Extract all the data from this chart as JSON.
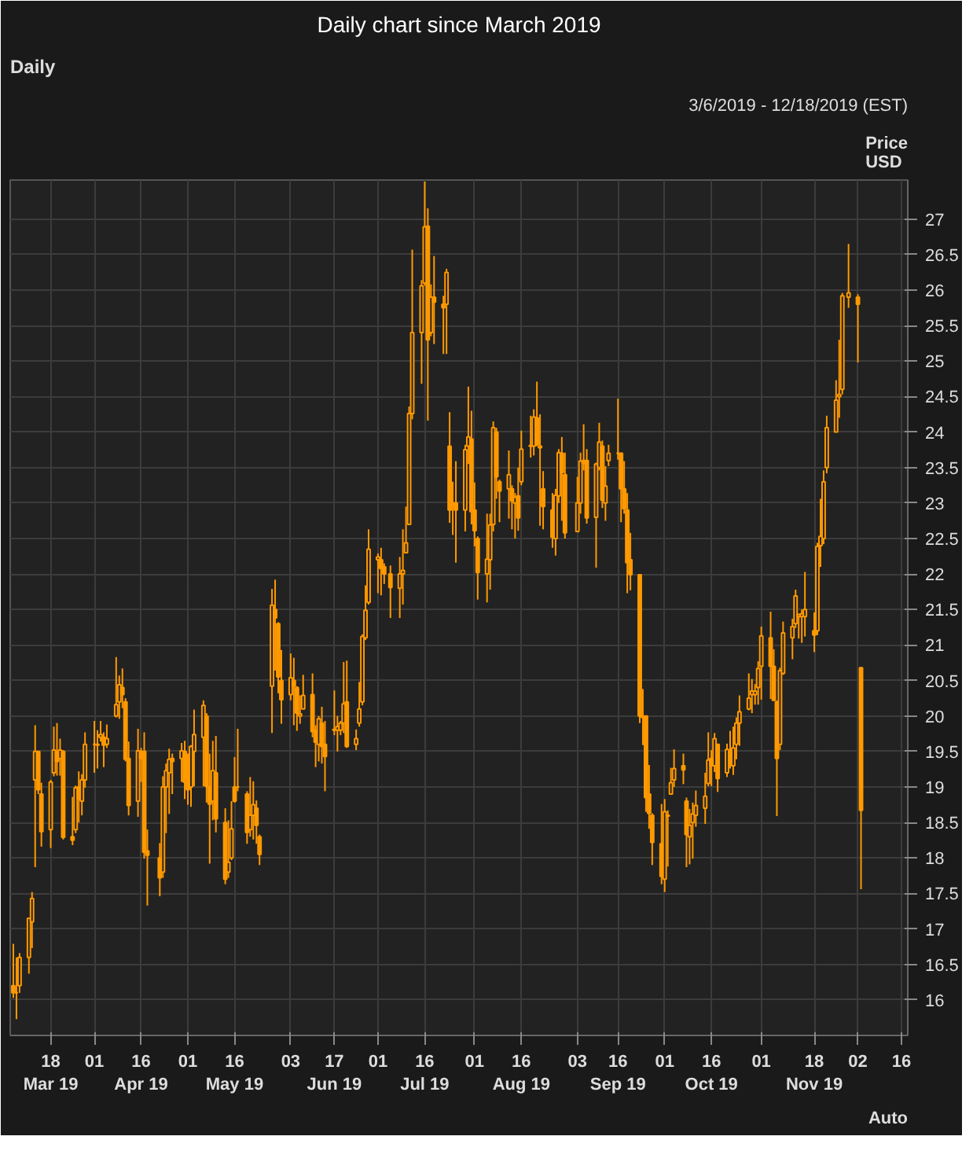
{
  "chart_data": {
    "type": "candlestick",
    "title": "Daily chart since March 2019",
    "subtitle": "3/6/2019 - 12/18/2019 (EST)",
    "ylabel": "Price\nUSD",
    "annotations": [
      "Daily",
      "Auto"
    ],
    "color": "#ff9900",
    "grid": true,
    "xlim": [
      "2019-03-05",
      "2019-12-18"
    ],
    "xticks": [
      {
        "value": "2019-03-18",
        "label": "18\nMar 19"
      },
      {
        "value": "2019-04-01",
        "label": "01"
      },
      {
        "value": "2019-04-16",
        "label": "16\nApr 19"
      },
      {
        "value": "2019-05-01",
        "label": "01"
      },
      {
        "value": "2019-05-16",
        "label": "16\nMay 19"
      },
      {
        "value": "2019-06-03",
        "label": "03"
      },
      {
        "value": "2019-06-17",
        "label": "17\nJun 19"
      },
      {
        "value": "2019-07-01",
        "label": "01"
      },
      {
        "value": "2019-07-16",
        "label": "16\nJul 19"
      },
      {
        "value": "2019-08-01",
        "label": "01"
      },
      {
        "value": "2019-08-16",
        "label": "16\nAug 19"
      },
      {
        "value": "2019-09-03",
        "label": "03"
      },
      {
        "value": "2019-09-16",
        "label": "16\nSep 19"
      },
      {
        "value": "2019-10-01",
        "label": "01"
      },
      {
        "value": "2019-10-16",
        "label": "16\nOct 19"
      },
      {
        "value": "2019-11-01",
        "label": "01"
      },
      {
        "value": "2019-11-18",
        "label": "18\nNov 19"
      },
      {
        "value": "2019-12-02",
        "label": "02"
      },
      {
        "value": "2019-12-16",
        "label": "16"
      }
    ],
    "ylim": [
      15.5,
      27.55
    ],
    "yticks": [
      16,
      16.5,
      17,
      17.5,
      18,
      18.5,
      19,
      19.5,
      20,
      20.5,
      21,
      21.5,
      22,
      22.5,
      23,
      23.5,
      24,
      24.5,
      25,
      25.5,
      26,
      26.5,
      27
    ],
    "x": [
      "2019-03-06",
      "2019-03-07",
      "2019-03-08",
      "2019-03-11",
      "2019-03-12",
      "2019-03-13",
      "2019-03-14",
      "2019-03-15",
      "2019-03-18",
      "2019-03-19",
      "2019-03-20",
      "2019-03-21",
      "2019-03-22",
      "2019-03-25",
      "2019-03-26",
      "2019-03-27",
      "2019-03-28",
      "2019-03-29",
      "2019-04-01",
      "2019-04-02",
      "2019-04-03",
      "2019-04-04",
      "2019-04-05",
      "2019-04-08",
      "2019-04-09",
      "2019-04-10",
      "2019-04-11",
      "2019-04-12",
      "2019-04-15",
      "2019-04-16",
      "2019-04-17",
      "2019-04-18",
      "2019-04-22",
      "2019-04-23",
      "2019-04-24",
      "2019-04-25",
      "2019-04-26",
      "2019-04-29",
      "2019-04-30",
      "2019-05-01",
      "2019-05-02",
      "2019-05-03",
      "2019-05-06",
      "2019-05-07",
      "2019-05-08",
      "2019-05-09",
      "2019-05-10",
      "2019-05-13",
      "2019-05-14",
      "2019-05-15",
      "2019-05-16",
      "2019-05-17",
      "2019-05-20",
      "2019-05-21",
      "2019-05-22",
      "2019-05-23",
      "2019-05-24",
      "2019-05-28",
      "2019-05-29",
      "2019-05-30",
      "2019-05-31",
      "2019-06-03",
      "2019-06-04",
      "2019-06-05",
      "2019-06-06",
      "2019-06-07",
      "2019-06-10",
      "2019-06-11",
      "2019-06-12",
      "2019-06-13",
      "2019-06-14",
      "2019-06-17",
      "2019-06-18",
      "2019-06-19",
      "2019-06-20",
      "2019-06-21",
      "2019-06-24",
      "2019-06-25",
      "2019-06-26",
      "2019-06-27",
      "2019-06-28",
      "2019-07-01",
      "2019-07-02",
      "2019-07-03",
      "2019-07-05",
      "2019-07-08",
      "2019-07-09",
      "2019-07-10",
      "2019-07-11",
      "2019-07-12",
      "2019-07-15",
      "2019-07-16",
      "2019-07-17",
      "2019-07-18",
      "2019-07-19",
      "2019-07-22",
      "2019-07-23",
      "2019-07-24",
      "2019-07-25",
      "2019-07-26",
      "2019-07-29",
      "2019-07-30",
      "2019-07-31",
      "2019-08-01",
      "2019-08-02",
      "2019-08-05",
      "2019-08-06",
      "2019-08-07",
      "2019-08-08",
      "2019-08-09",
      "2019-08-12",
      "2019-08-13",
      "2019-08-14",
      "2019-08-15",
      "2019-08-16",
      "2019-08-19",
      "2019-08-20",
      "2019-08-21",
      "2019-08-22",
      "2019-08-23",
      "2019-08-26",
      "2019-08-27",
      "2019-08-28",
      "2019-08-29",
      "2019-08-30",
      "2019-09-03",
      "2019-09-04",
      "2019-09-05",
      "2019-09-06",
      "2019-09-09",
      "2019-09-10",
      "2019-09-11",
      "2019-09-12",
      "2019-09-13",
      "2019-09-16",
      "2019-09-17",
      "2019-09-18",
      "2019-09-19",
      "2019-09-20",
      "2019-09-23",
      "2019-09-24",
      "2019-09-25",
      "2019-09-26",
      "2019-09-27",
      "2019-09-30",
      "2019-10-01",
      "2019-10-02",
      "2019-10-03",
      "2019-10-04",
      "2019-10-07",
      "2019-10-08",
      "2019-10-09",
      "2019-10-10",
      "2019-10-11",
      "2019-10-14",
      "2019-10-15",
      "2019-10-16",
      "2019-10-17",
      "2019-10-18",
      "2019-10-21",
      "2019-10-22",
      "2019-10-23",
      "2019-10-24",
      "2019-10-25",
      "2019-10-28",
      "2019-10-29",
      "2019-10-30",
      "2019-10-31",
      "2019-11-01",
      "2019-11-04",
      "2019-11-05",
      "2019-11-06",
      "2019-11-07",
      "2019-11-08",
      "2019-11-11",
      "2019-11-12",
      "2019-11-13",
      "2019-11-14",
      "2019-11-15",
      "2019-11-18",
      "2019-11-19",
      "2019-11-20",
      "2019-11-21",
      "2019-11-22",
      "2019-11-25",
      "2019-11-26",
      "2019-11-27",
      "2019-11-29",
      "2019-12-02",
      "2019-12-03"
    ],
    "ohlc": [
      [
        16.2,
        16.79,
        16.03,
        16.1
      ],
      [
        16.1,
        16.6,
        15.73,
        16.1
      ],
      [
        16.2,
        16.66,
        16.1,
        16.6
      ],
      [
        16.6,
        17.15,
        16.37,
        17.15
      ],
      [
        17.1,
        17.52,
        16.73,
        17.43
      ],
      [
        19.1,
        19.87,
        17.87,
        19.5
      ],
      [
        19.5,
        19.5,
        18.9,
        18.96
      ],
      [
        18.9,
        19.06,
        18.16,
        18.37
      ],
      [
        18.4,
        19.1,
        18.14,
        19.07
      ],
      [
        19.2,
        19.85,
        19.15,
        19.52
      ],
      [
        19.5,
        19.9,
        19.16,
        19.36
      ],
      [
        19.4,
        19.68,
        19.16,
        19.52
      ],
      [
        19.5,
        19.52,
        18.26,
        18.29
      ],
      [
        18.3,
        18.86,
        18.18,
        18.25
      ],
      [
        18.4,
        19.02,
        18.35,
        18.99
      ],
      [
        19.0,
        19.22,
        18.5,
        18.83
      ],
      [
        18.8,
        19.18,
        18.6,
        19.1
      ],
      [
        19.1,
        19.77,
        18.99,
        19.6
      ],
      [
        19.6,
        19.93,
        19.2,
        19.6
      ],
      [
        19.6,
        19.8,
        19.26,
        19.59
      ],
      [
        19.7,
        19.93,
        19.64,
        19.74
      ],
      [
        19.7,
        19.77,
        19.28,
        19.59
      ],
      [
        19.6,
        19.88,
        19.55,
        19.68
      ],
      [
        20.0,
        20.83,
        19.98,
        20.16
      ],
      [
        20.2,
        20.57,
        19.96,
        20.44
      ],
      [
        20.4,
        20.67,
        20.11,
        20.3
      ],
      [
        20.2,
        20.25,
        19.36,
        19.39
      ],
      [
        19.4,
        19.64,
        18.6,
        18.74
      ],
      [
        18.8,
        19.82,
        18.58,
        19.51
      ],
      [
        19.5,
        19.55,
        19.07,
        19.4
      ],
      [
        19.5,
        19.77,
        17.99,
        18.08
      ],
      [
        18.1,
        18.4,
        17.33,
        18.04
      ],
      [
        18.0,
        18.21,
        17.46,
        17.72
      ],
      [
        17.8,
        19.15,
        17.72,
        19.0
      ],
      [
        19.0,
        19.33,
        18.35,
        19.23
      ],
      [
        19.2,
        19.54,
        18.62,
        19.39
      ],
      [
        19.4,
        19.47,
        18.9,
        19.36
      ],
      [
        19.4,
        19.62,
        19.07,
        19.51
      ],
      [
        19.5,
        19.65,
        18.83,
        19.07
      ],
      [
        19.1,
        19.47,
        18.75,
        18.96
      ],
      [
        19.0,
        19.59,
        18.72,
        19.57
      ],
      [
        19.5,
        20.09,
        19.01,
        19.74
      ],
      [
        19.7,
        20.22,
        19.01,
        20.15
      ],
      [
        20.0,
        20.04,
        18.78,
        19.01
      ],
      [
        19.0,
        19.47,
        17.92,
        18.76
      ],
      [
        18.8,
        19.65,
        18.53,
        19.23
      ],
      [
        19.2,
        19.72,
        18.36,
        18.55
      ],
      [
        18.5,
        18.7,
        17.63,
        17.7
      ],
      [
        17.8,
        18.53,
        17.72,
        17.94
      ],
      [
        18.0,
        18.8,
        17.97,
        18.41
      ],
      [
        19.0,
        19.42,
        18.78,
        18.8
      ],
      [
        19.0,
        19.82,
        18.94,
        19.0
      ],
      [
        18.9,
        18.94,
        18.2,
        18.36
      ],
      [
        18.4,
        19.14,
        18.3,
        18.6
      ],
      [
        18.6,
        19.08,
        18.26,
        18.75
      ],
      [
        18.7,
        18.81,
        18.2,
        18.46
      ],
      [
        18.3,
        18.33,
        17.9,
        18.05
      ],
      [
        20.42,
        21.79,
        19.76,
        21.56
      ],
      [
        21.5,
        21.92,
        20.64,
        21.38
      ],
      [
        21.3,
        21.32,
        20.32,
        20.55
      ],
      [
        20.5,
        20.93,
        19.89,
        20.23
      ],
      [
        20.3,
        20.88,
        20.22,
        20.54
      ],
      [
        20.5,
        20.82,
        19.87,
        20.42
      ],
      [
        20.4,
        20.42,
        19.79,
        20.04
      ],
      [
        20.0,
        20.29,
        19.89,
        20.03
      ],
      [
        20.1,
        20.58,
        20.1,
        20.29
      ],
      [
        20.3,
        20.6,
        19.7,
        19.78
      ],
      [
        19.8,
        19.87,
        19.28,
        19.63
      ],
      [
        19.6,
        20.0,
        19.36,
        19.96
      ],
      [
        19.9,
        20.13,
        19.33,
        19.57
      ],
      [
        19.6,
        19.93,
        18.94,
        19.43
      ],
      [
        19.8,
        20.36,
        19.73,
        19.81
      ],
      [
        19.8,
        20.0,
        19.5,
        19.85
      ],
      [
        19.8,
        19.93,
        19.73,
        19.9
      ],
      [
        19.9,
        20.76,
        19.76,
        20.17
      ],
      [
        20.2,
        20.78,
        19.55,
        19.57
      ],
      [
        19.6,
        19.81,
        19.52,
        19.68
      ],
      [
        19.9,
        20.48,
        19.85,
        20.1
      ],
      [
        20.2,
        21.15,
        20.15,
        21.12
      ],
      [
        21.1,
        21.84,
        21.07,
        21.49
      ],
      [
        21.6,
        22.63,
        21.57,
        22.35
      ],
      [
        22.2,
        22.29,
        21.73,
        22.24
      ],
      [
        22.2,
        22.37,
        21.7,
        22.08
      ],
      [
        22.1,
        22.15,
        21.86,
        22.0
      ],
      [
        22.0,
        22.12,
        21.38,
        21.81
      ],
      [
        21.8,
        22.24,
        21.38,
        22.0
      ],
      [
        22.0,
        22.63,
        21.57,
        22.05
      ],
      [
        22.3,
        22.95,
        22.29,
        22.44
      ],
      [
        22.7,
        24.36,
        22.69,
        24.26
      ],
      [
        24.26,
        26.57,
        24.18,
        25.4
      ],
      [
        25.4,
        26.14,
        24.68,
        26.06
      ],
      [
        26.1,
        27.53,
        26.06,
        26.89
      ],
      [
        26.9,
        27.15,
        24.16,
        25.3
      ],
      [
        25.4,
        26.08,
        25.35,
        25.9
      ],
      [
        25.9,
        26.48,
        25.24,
        25.83
      ],
      [
        25.8,
        25.92,
        25.1,
        25.75
      ],
      [
        25.8,
        26.3,
        25.1,
        26.25
      ],
      [
        23.8,
        24.28,
        22.72,
        22.9
      ],
      [
        23.0,
        23.3,
        22.55,
        22.98
      ],
      [
        23.0,
        23.59,
        22.16,
        22.9
      ],
      [
        22.9,
        23.82,
        22.6,
        23.75
      ],
      [
        23.8,
        24.64,
        23.55,
        23.93
      ],
      [
        23.9,
        24.3,
        22.7,
        22.88
      ],
      [
        22.9,
        23.29,
        22.39,
        22.61
      ],
      [
        22.5,
        22.53,
        21.64,
        22.02
      ],
      [
        22.0,
        22.85,
        21.6,
        22.21
      ],
      [
        22.2,
        22.85,
        21.78,
        22.69
      ],
      [
        22.7,
        24.15,
        22.6,
        24.06
      ],
      [
        24.0,
        24.06,
        23.06,
        23.37
      ],
      [
        23.3,
        23.33,
        22.73,
        23.17
      ],
      [
        23.2,
        23.74,
        22.78,
        23.4
      ],
      [
        23.2,
        23.25,
        22.63,
        23.03
      ],
      [
        23.0,
        23.14,
        22.5,
        23.08
      ],
      [
        23.1,
        23.5,
        22.61,
        22.79
      ],
      [
        23.3,
        24.02,
        23.25,
        23.76
      ],
      [
        23.8,
        24.23,
        23.64,
        23.81
      ],
      [
        23.8,
        24.32,
        23.67,
        24.21
      ],
      [
        24.2,
        24.71,
        23.8,
        23.82
      ],
      [
        23.8,
        24.25,
        22.68,
        23.78
      ],
      [
        23.2,
        23.45,
        22.63,
        22.95
      ],
      [
        22.9,
        23.14,
        22.37,
        22.52
      ],
      [
        22.5,
        23.2,
        22.26,
        23.11
      ],
      [
        23.1,
        23.76,
        23.0,
        23.71
      ],
      [
        23.7,
        23.93,
        22.75,
        23.43
      ],
      [
        23.4,
        23.71,
        22.5,
        22.58
      ],
      [
        22.6,
        23.37,
        22.6,
        23.0
      ],
      [
        23.0,
        23.71,
        22.85,
        23.59
      ],
      [
        23.6,
        24.11,
        23.46,
        23.56
      ],
      [
        23.6,
        23.76,
        22.71,
        22.79
      ],
      [
        22.8,
        23.57,
        22.09,
        23.55
      ],
      [
        23.5,
        24.13,
        23.46,
        23.86
      ],
      [
        23.8,
        23.88,
        22.93,
        23.04
      ],
      [
        23.0,
        23.52,
        22.75,
        23.24
      ],
      [
        23.6,
        23.82,
        23.52,
        23.7
      ],
      [
        23.7,
        24.47,
        23.61,
        23.7
      ],
      [
        23.7,
        23.71,
        22.73,
        23.2
      ],
      [
        23.2,
        23.59,
        22.85,
        22.92
      ],
      [
        22.9,
        23.14,
        21.73,
        22.16
      ],
      [
        22.2,
        22.58,
        21.77,
        21.99
      ],
      [
        21.99,
        21.99,
        19.9,
        20.0
      ],
      [
        20.0,
        20.38,
        19.59,
        19.98
      ],
      [
        20.0,
        20.0,
        18.65,
        18.85
      ],
      [
        18.9,
        19.31,
        18.41,
        18.63
      ],
      [
        18.6,
        18.63,
        17.9,
        18.22
      ],
      [
        18.2,
        18.76,
        17.63,
        17.74
      ],
      [
        17.7,
        18.83,
        17.52,
        18.65
      ],
      [
        18.6,
        18.67,
        17.88,
        18.59
      ],
      [
        18.9,
        19.27,
        18.89,
        19.06
      ],
      [
        19.1,
        19.53,
        19.0,
        19.26
      ],
      [
        19.3,
        19.47,
        19.04,
        19.24
      ],
      [
        18.8,
        18.85,
        17.87,
        18.33
      ],
      [
        18.3,
        18.69,
        17.91,
        18.46
      ],
      [
        18.5,
        18.78,
        17.99,
        18.62
      ],
      [
        18.6,
        18.95,
        18.44,
        18.74
      ],
      [
        18.7,
        19.2,
        18.48,
        18.87
      ],
      [
        19.05,
        19.77,
        19.01,
        19.38
      ],
      [
        19.4,
        19.52,
        19.01,
        19.3
      ],
      [
        19.3,
        19.76,
        19.21,
        19.68
      ],
      [
        19.6,
        19.6,
        18.93,
        19.12
      ],
      [
        19.2,
        19.61,
        19.14,
        19.53
      ],
      [
        19.5,
        19.79,
        19.26,
        19.33
      ],
      [
        19.3,
        19.85,
        19.17,
        19.55
      ],
      [
        19.6,
        19.98,
        19.39,
        19.9
      ],
      [
        19.9,
        20.29,
        19.58,
        20.06
      ],
      [
        20.1,
        20.6,
        20.08,
        20.25
      ],
      [
        20.3,
        20.52,
        20.04,
        20.35
      ],
      [
        20.3,
        20.45,
        20.16,
        20.35
      ],
      [
        20.4,
        20.77,
        20.16,
        20.67
      ],
      [
        20.7,
        21.26,
        20.23,
        21.13
      ],
      [
        21.1,
        21.47,
        20.24,
        20.7
      ],
      [
        20.7,
        20.94,
        20.21,
        20.22
      ],
      [
        20.2,
        20.22,
        18.59,
        19.4
      ],
      [
        19.6,
        20.68,
        19.52,
        20.64
      ],
      [
        20.6,
        21.33,
        20.58,
        21.17
      ],
      [
        21.1,
        21.37,
        20.8,
        21.26
      ],
      [
        21.3,
        21.78,
        21.24,
        21.69
      ],
      [
        21.4,
        21.44,
        21.09,
        21.43
      ],
      [
        21.4,
        21.5,
        21.03,
        21.44
      ],
      [
        21.4,
        22.03,
        21.12,
        21.5
      ],
      [
        21.2,
        21.46,
        20.9,
        21.14
      ],
      [
        21.2,
        22.44,
        21.14,
        22.39
      ],
      [
        22.4,
        23.06,
        22.1,
        22.53
      ],
      [
        22.5,
        23.46,
        22.42,
        23.3
      ],
      [
        23.5,
        24.23,
        23.42,
        24.06
      ],
      [
        24.0,
        24.73,
        24.0,
        24.45
      ],
      [
        24.5,
        25.3,
        24.2,
        24.53
      ],
      [
        24.6,
        25.96,
        24.53,
        25.92
      ],
      [
        25.9,
        26.65,
        25.75,
        25.96
      ],
      [
        25.9,
        25.94,
        24.98,
        25.8
      ],
      [
        20.68,
        20.68,
        17.56,
        18.67
      ]
    ]
  }
}
